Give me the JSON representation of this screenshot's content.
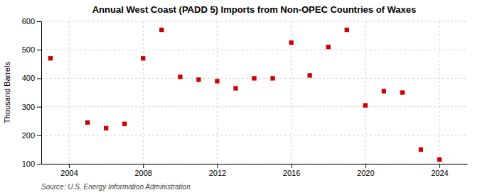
{
  "chart_data": {
    "type": "scatter",
    "title": "Annual West Coast (PADD 5) Imports from Non-OPEC Countries of Waxes",
    "ylabel": "Thousand Barrels",
    "source": "Source: U.S. Energy Information Administration",
    "x": [
      2003,
      2005,
      2006,
      2007,
      2008,
      2009,
      2010,
      2011,
      2012,
      2013,
      2014,
      2015,
      2016,
      2017,
      2018,
      2019,
      2020,
      2021,
      2022,
      2023,
      2024
    ],
    "values": [
      470,
      245,
      225,
      240,
      470,
      570,
      405,
      395,
      390,
      365,
      400,
      400,
      525,
      410,
      510,
      570,
      305,
      355,
      350,
      150,
      115
    ],
    "color": "#cc0000",
    "marker": "square",
    "xlim": [
      2002.5,
      2025.5
    ],
    "xticks": [
      2004,
      2008,
      2012,
      2016,
      2020,
      2024
    ],
    "ylim": [
      100,
      600
    ],
    "yticks": [
      100,
      200,
      300,
      400,
      500,
      600
    ],
    "grid": true
  }
}
